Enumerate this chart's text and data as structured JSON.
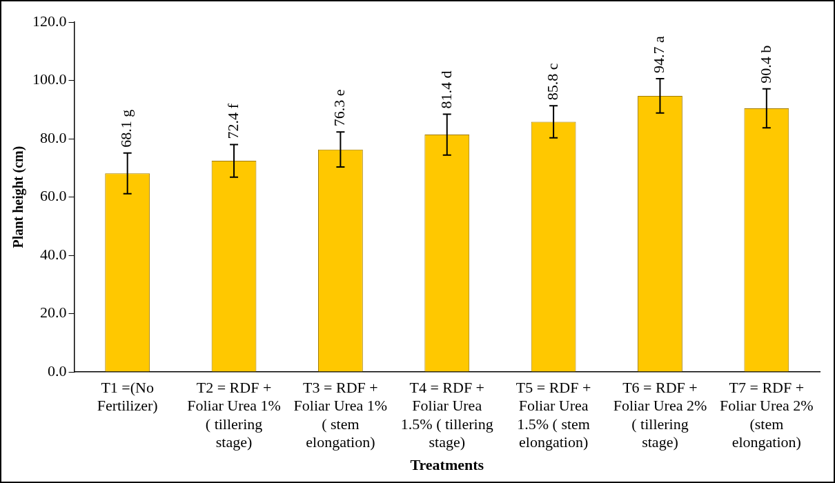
{
  "chart_data": {
    "type": "bar",
    "xlabel": "Treatments",
    "ylabel": "Plant height (cm)",
    "categories": [
      "T1 =(No Fertilizer)",
      "T2 = RDF + Foliar Urea 1% ( tillering stage)",
      "T3 = RDF + Foliar Urea 1% ( stem elongation)",
      "T4 = RDF + Foliar Urea 1.5% ( tillering stage)",
      "T5 = RDF + Foliar Urea 1.5% ( stem elongation)",
      "T6 = RDF + Foliar Urea 2% ( tillering stage)",
      "T7 = RDF + Foliar Urea 2% (stem elongation)"
    ],
    "values": [
      68.1,
      72.4,
      76.3,
      81.4,
      85.8,
      94.7,
      90.4
    ],
    "value_labels": [
      "68.1 g",
      "72.4 f",
      "76.3 e",
      "81.4 d",
      "85.8 c",
      "94.7 a",
      "90.4 b"
    ],
    "errors": [
      7,
      5.6,
      6,
      7,
      5.5,
      5.9,
      6.7
    ],
    "color": "#ffc800",
    "ylim": [
      0,
      120
    ],
    "yticks": [
      {
        "value": 0,
        "label": "0.0"
      },
      {
        "value": 20,
        "label": "20.0"
      },
      {
        "value": 40,
        "label": "40.0"
      },
      {
        "value": 60,
        "label": "60.0"
      },
      {
        "value": 80,
        "label": "80.0"
      },
      {
        "value": 100,
        "label": "100.0"
      },
      {
        "value": 120,
        "label": "120.0"
      }
    ],
    "grid": false,
    "legend": false
  }
}
